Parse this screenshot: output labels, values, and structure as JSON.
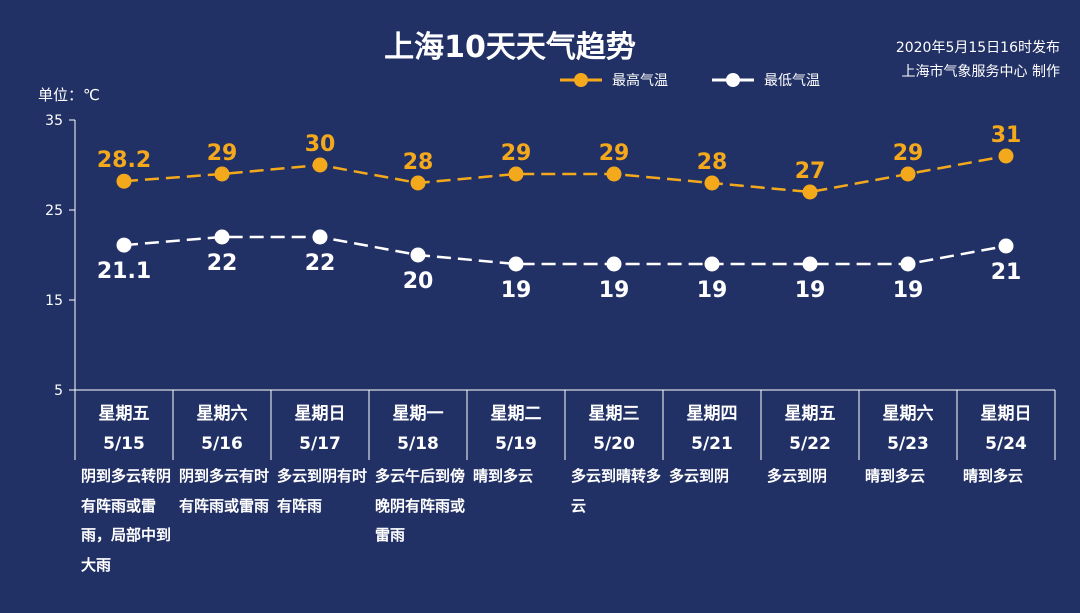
{
  "header": {
    "title": "上海10天天气趋势",
    "publish_line1": "2020年5月15日16时发布",
    "publish_line2": "上海市气象服务中心 制作",
    "unit": "单位：℃"
  },
  "colors": {
    "background": "#223165",
    "high": "#f4a91c",
    "low": "#ffffff"
  },
  "chart_data": {
    "type": "line",
    "categories": [
      "5/15",
      "5/16",
      "5/17",
      "5/18",
      "5/19",
      "5/20",
      "5/21",
      "5/22",
      "5/23",
      "5/24"
    ],
    "series": [
      {
        "name": "最高气温",
        "values": [
          28.2,
          29,
          30,
          28,
          29,
          29,
          28,
          27,
          29,
          31
        ],
        "labels": [
          "28.2",
          "29",
          "30",
          "28",
          "29",
          "29",
          "28",
          "27",
          "29",
          "31"
        ]
      },
      {
        "name": "最低气温",
        "values": [
          21.1,
          22,
          22,
          20,
          19,
          19,
          19,
          19,
          19,
          21
        ],
        "labels": [
          "21.1",
          "22",
          "22",
          "20",
          "19",
          "19",
          "19",
          "19",
          "19",
          "21"
        ]
      }
    ],
    "ylim": [
      5,
      35
    ],
    "yticks": [
      "35",
      "25",
      "15",
      "5"
    ],
    "ylabel": "单位：℃",
    "legend": "top-center",
    "grid": false,
    "line_style": "dashed"
  },
  "days": [
    {
      "weekday": "星期五",
      "date": "5/15",
      "weather": "阴到多云转阴有阵雨或雷雨，局部中到大雨"
    },
    {
      "weekday": "星期六",
      "date": "5/16",
      "weather": "阴到多云有时有阵雨或雷雨"
    },
    {
      "weekday": "星期日",
      "date": "5/17",
      "weather": "多云到阴有时有阵雨"
    },
    {
      "weekday": "星期一",
      "date": "5/18",
      "weather": "多云午后到傍晚阴有阵雨或雷雨"
    },
    {
      "weekday": "星期二",
      "date": "5/19",
      "weather": "晴到多云"
    },
    {
      "weekday": "星期三",
      "date": "5/20",
      "weather": "多云到晴转多云"
    },
    {
      "weekday": "星期四",
      "date": "5/21",
      "weather": "多云到阴"
    },
    {
      "weekday": "星期五",
      "date": "5/22",
      "weather": "多云到阴"
    },
    {
      "weekday": "星期六",
      "date": "5/23",
      "weather": "晴到多云"
    },
    {
      "weekday": "星期日",
      "date": "5/24",
      "weather": "晴到多云"
    }
  ]
}
